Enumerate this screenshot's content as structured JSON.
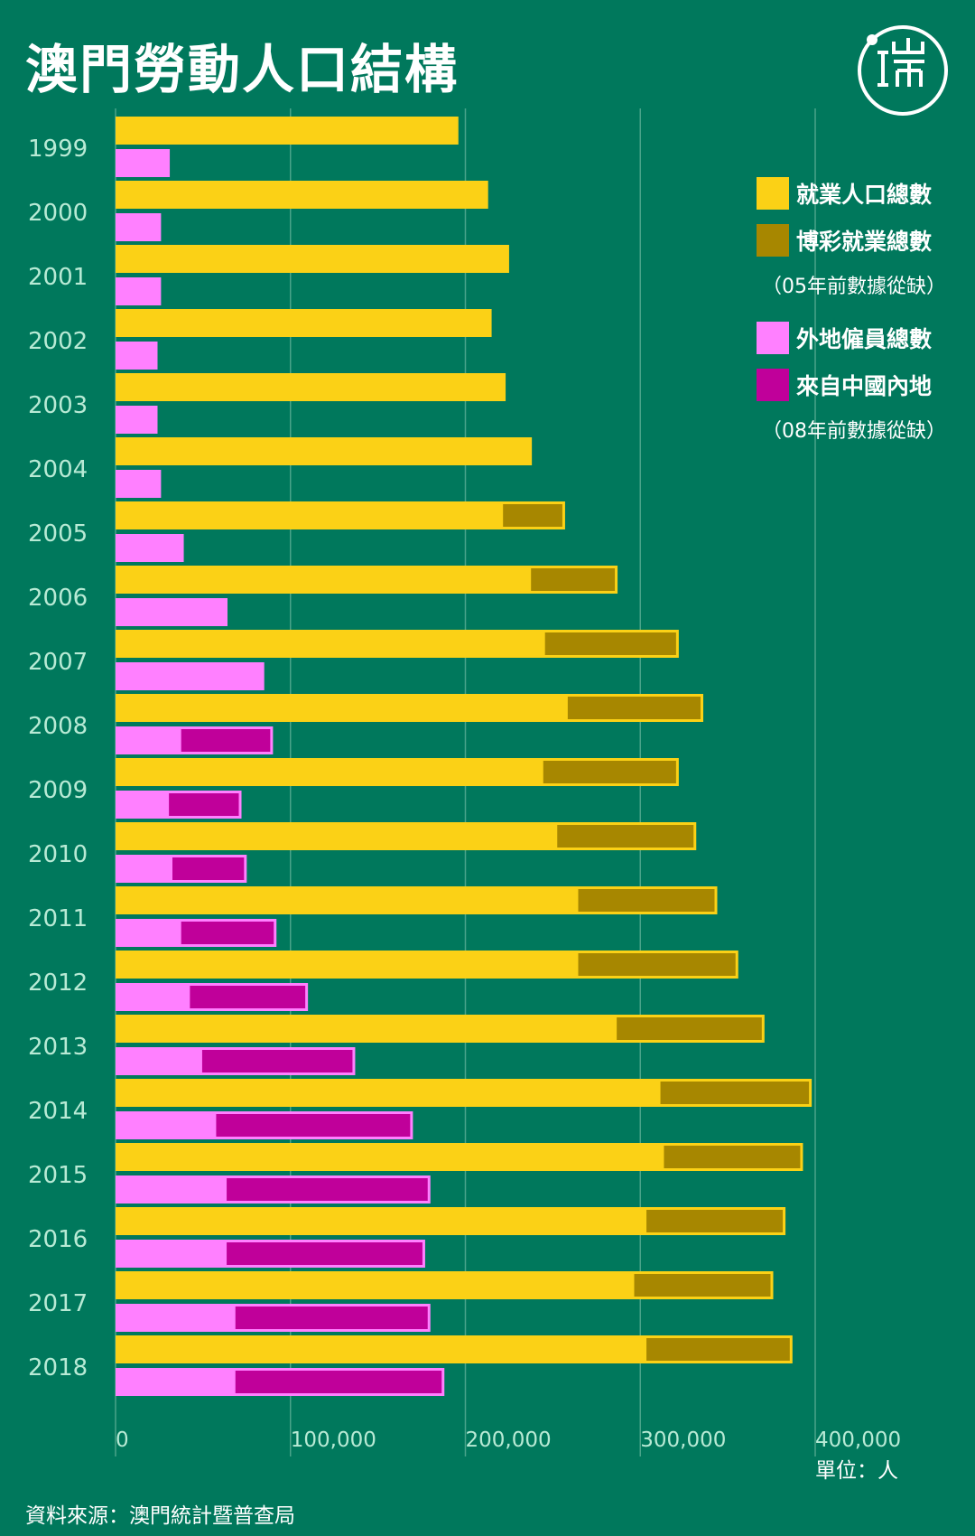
{
  "page": {
    "title": "澳門勞動人口結構",
    "source": "資料來源：澳門統計暨普查局",
    "unit": "單位：人"
  },
  "colors": {
    "background": "#00785c",
    "employed": "#fbd116",
    "gaming": "#a78700",
    "foreign": "#ff80ff",
    "mainland": "#c0009a",
    "grid": "#4aa38a"
  },
  "legend": [
    {
      "key": "employed",
      "label": "就業人口總數",
      "note": ""
    },
    {
      "key": "gaming",
      "label": "博彩就業總數",
      "note": "（05年前數據從缺）"
    },
    {
      "key": "foreign",
      "label": "外地僱員總數",
      "note": ""
    },
    {
      "key": "mainland",
      "label": "來自中國內地",
      "note": "（08年前數據從缺）"
    }
  ],
  "chart_data": {
    "type": "bar",
    "orientation": "horizontal",
    "categories": [
      "1999",
      "2000",
      "2001",
      "2002",
      "2003",
      "2004",
      "2005",
      "2006",
      "2007",
      "2008",
      "2009",
      "2010",
      "2011",
      "2012",
      "2013",
      "2014",
      "2015",
      "2016",
      "2017",
      "2018"
    ],
    "xlim": [
      0,
      400000
    ],
    "xticks": [
      0,
      100000,
      200000,
      300000,
      400000
    ],
    "xtick_labels": [
      "0",
      "100,000",
      "200,000",
      "300,000",
      "400,000"
    ],
    "grid": true,
    "legend_position": "top-right",
    "series": [
      {
        "key": "employed",
        "name": "就業人口總數",
        "values": [
          196000,
          213000,
          225000,
          215000,
          223000,
          238000,
          257000,
          287000,
          322000,
          336000,
          322000,
          332000,
          344000,
          356000,
          371000,
          398000,
          393000,
          383000,
          376000,
          387000
        ]
      },
      {
        "key": "gaming",
        "name": "博彩就業總數",
        "values": [
          null,
          null,
          null,
          null,
          null,
          null,
          36000,
          50000,
          77000,
          78000,
          78000,
          80000,
          80000,
          92000,
          85000,
          87000,
          80000,
          80000,
          80000,
          84000
        ]
      },
      {
        "key": "foreign",
        "name": "外地僱員總數",
        "values": [
          31000,
          26000,
          26000,
          24000,
          24000,
          26000,
          39000,
          64000,
          85000,
          90000,
          72000,
          75000,
          92000,
          110000,
          137000,
          170000,
          180000,
          177000,
          180000,
          188000
        ]
      },
      {
        "key": "mainland",
        "name": "來自中國內地",
        "values": [
          null,
          null,
          null,
          null,
          null,
          null,
          null,
          null,
          null,
          53000,
          42000,
          43000,
          55000,
          68000,
          88000,
          113000,
          117000,
          114000,
          112000,
          120000
        ]
      }
    ]
  }
}
